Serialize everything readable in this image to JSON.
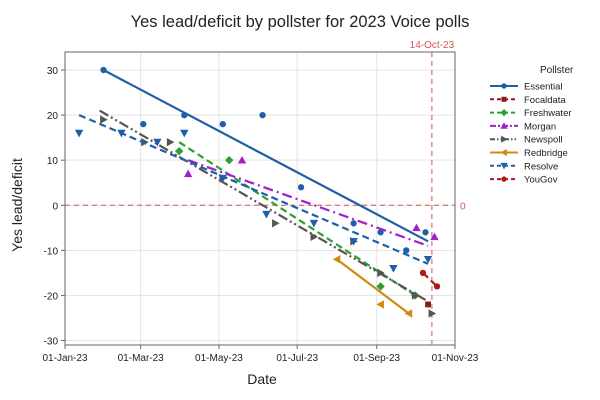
{
  "colors": {
    "background": "#ffffff",
    "grid": "#e3e3e3",
    "axis": "#666666",
    "reference_line": "#d9534f",
    "text": "#222222"
  },
  "chart_data": {
    "type": "scatter",
    "title": "Yes lead/deficit by pollster for 2023 Voice polls",
    "xlabel": "Date",
    "ylabel": "Yes lead/deficit",
    "x_axis_kind": "date",
    "xlim": [
      "2023-01-01",
      "2023-11-01"
    ],
    "ylim": [
      -31,
      34
    ],
    "x_ticks": [
      {
        "value": "2023-01-01",
        "label": "01-Jan-23"
      },
      {
        "value": "2023-03-01",
        "label": "01-Mar-23"
      },
      {
        "value": "2023-05-01",
        "label": "01-May-23"
      },
      {
        "value": "2023-07-01",
        "label": "01-Jul-23"
      },
      {
        "value": "2023-09-01",
        "label": "01-Sep-23"
      },
      {
        "value": "2023-11-01",
        "label": "01-Nov-23"
      }
    ],
    "y_ticks": [
      {
        "value": 30,
        "label": "30"
      },
      {
        "value": 20,
        "label": "20"
      },
      {
        "value": 10,
        "label": "10"
      },
      {
        "value": 0,
        "label": "0"
      },
      {
        "value": -10,
        "label": "-10"
      },
      {
        "value": -20,
        "label": "-20"
      },
      {
        "value": -30,
        "label": "-30"
      }
    ],
    "grid": true,
    "legend": {
      "title": "Pollster",
      "position": "right"
    },
    "reference_lines": [
      {
        "axis": "x",
        "value": "2023-10-14",
        "label": "14-Oct-23",
        "color": "#d9534f"
      },
      {
        "axis": "y",
        "value": 0,
        "label": "0",
        "color": "#d9534f"
      }
    ],
    "series": [
      {
        "name": "Essential",
        "color": "#1f5fa8",
        "marker": "circle",
        "line_style": "solid",
        "points": [
          {
            "x": "2023-01-31",
            "y": 30
          },
          {
            "x": "2023-03-03",
            "y": 18
          },
          {
            "x": "2023-04-04",
            "y": 20
          },
          {
            "x": "2023-05-04",
            "y": 18
          },
          {
            "x": "2023-06-04",
            "y": 20
          },
          {
            "x": "2023-07-04",
            "y": 4
          },
          {
            "x": "2023-08-14",
            "y": -4
          },
          {
            "x": "2023-09-04",
            "y": -6
          },
          {
            "x": "2023-09-24",
            "y": -10
          },
          {
            "x": "2023-10-09",
            "y": -6
          }
        ],
        "trend": [
          {
            "x": "2023-01-31",
            "y": 30
          },
          {
            "x": "2023-10-11",
            "y": -8
          }
        ]
      },
      {
        "name": "Focaldata",
        "color": "#8b1a1a",
        "marker": "square",
        "line_style": "dashed",
        "points": [
          {
            "x": "2023-10-11",
            "y": -22
          }
        ],
        "trend": []
      },
      {
        "name": "Freshwater",
        "color": "#2e9e2e",
        "marker": "diamond",
        "line_style": "dashed",
        "points": [
          {
            "x": "2023-03-31",
            "y": 12
          },
          {
            "x": "2023-05-09",
            "y": 10
          },
          {
            "x": "2023-09-04",
            "y": -18
          },
          {
            "x": "2023-10-01",
            "y": -20
          }
        ],
        "trend": [
          {
            "x": "2023-03-31",
            "y": 14
          },
          {
            "x": "2023-10-01",
            "y": -20
          }
        ]
      },
      {
        "name": "Morgan",
        "color": "#a020c8",
        "marker": "triangle-up",
        "line_style": "dashdot",
        "points": [
          {
            "x": "2023-04-07",
            "y": 7
          },
          {
            "x": "2023-05-19",
            "y": 10
          },
          {
            "x": "2023-10-02",
            "y": -5
          },
          {
            "x": "2023-10-16",
            "y": -7
          }
        ],
        "trend": [
          {
            "x": "2023-04-07",
            "y": 10
          },
          {
            "x": "2023-10-11",
            "y": -9
          }
        ]
      },
      {
        "name": "Newspoll",
        "color": "#555555",
        "marker": "triangle-right",
        "line_style": "dashdotdot",
        "points": [
          {
            "x": "2023-01-31",
            "y": 19
          },
          {
            "x": "2023-03-04",
            "y": 14
          },
          {
            "x": "2023-03-24",
            "y": 14
          },
          {
            "x": "2023-05-04",
            "y": 6
          },
          {
            "x": "2023-06-14",
            "y": -4
          },
          {
            "x": "2023-07-14",
            "y": -7
          },
          {
            "x": "2023-08-14",
            "y": -8
          },
          {
            "x": "2023-09-04",
            "y": -15
          },
          {
            "x": "2023-10-01",
            "y": -20
          },
          {
            "x": "2023-10-14",
            "y": -24
          }
        ],
        "trend": [
          {
            "x": "2023-01-28",
            "y": 21
          },
          {
            "x": "2023-10-09",
            "y": -21
          }
        ]
      },
      {
        "name": "Redbridge",
        "color": "#d08a10",
        "marker": "triangle-left",
        "line_style": "solid",
        "points": [
          {
            "x": "2023-08-01",
            "y": -12
          },
          {
            "x": "2023-09-04",
            "y": -22
          },
          {
            "x": "2023-09-26",
            "y": -24
          }
        ],
        "trend": [
          {
            "x": "2023-08-01",
            "y": -12
          },
          {
            "x": "2023-09-26",
            "y": -24
          }
        ]
      },
      {
        "name": "Resolve",
        "color": "#1f5fa8",
        "marker": "triangle-down",
        "line_style": "dashed",
        "points": [
          {
            "x": "2023-01-12",
            "y": 16
          },
          {
            "x": "2023-02-14",
            "y": 16
          },
          {
            "x": "2023-03-14",
            "y": 14
          },
          {
            "x": "2023-04-04",
            "y": 16
          },
          {
            "x": "2023-05-04",
            "y": 6
          },
          {
            "x": "2023-06-07",
            "y": -2
          },
          {
            "x": "2023-07-14",
            "y": -4
          },
          {
            "x": "2023-08-14",
            "y": -8
          },
          {
            "x": "2023-09-14",
            "y": -14
          },
          {
            "x": "2023-10-11",
            "y": -12
          }
        ],
        "trend": [
          {
            "x": "2023-01-12",
            "y": 20
          },
          {
            "x": "2023-10-11",
            "y": -13
          }
        ]
      },
      {
        "name": "YouGov",
        "color": "#b01818",
        "marker": "circle",
        "line_style": "dashed",
        "points": [
          {
            "x": "2023-10-07",
            "y": -15
          },
          {
            "x": "2023-10-18",
            "y": -18
          }
        ],
        "trend": [
          {
            "x": "2023-10-07",
            "y": -15
          },
          {
            "x": "2023-10-18",
            "y": -18
          }
        ]
      }
    ]
  }
}
